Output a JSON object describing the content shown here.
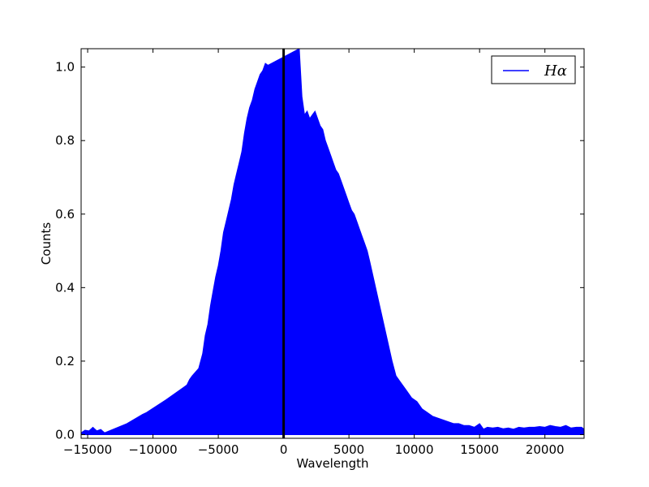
{
  "chart_data": {
    "type": "area",
    "title": "",
    "xlabel": "Wavelength",
    "ylabel": "Counts",
    "xlim": [
      -15500,
      23000
    ],
    "ylim": [
      -0.01,
      1.05
    ],
    "xticks": [
      -15000,
      -10000,
      -5000,
      0,
      5000,
      10000,
      15000,
      20000
    ],
    "xtick_labels": [
      "−15000",
      "−10000",
      "−5000",
      "0",
      "5000",
      "10000",
      "15000",
      "20000"
    ],
    "yticks": [
      0.0,
      0.2,
      0.4,
      0.6,
      0.8,
      1.0
    ],
    "ytick_labels": [
      "0.0",
      "0.2",
      "0.4",
      "0.6",
      "0.8",
      "1.0"
    ],
    "grid": false,
    "legend": {
      "placement": "top-right",
      "entries": [
        {
          "label": "Hα",
          "color": "#0000ff"
        }
      ]
    },
    "vertical_line": {
      "x": 0,
      "color": "#000000"
    },
    "series": [
      {
        "name": "Hα",
        "color": "#0000ff",
        "x": [
          -15500,
          -15200,
          -14900,
          -14600,
          -14300,
          -14000,
          -13700,
          -12000,
          -10800,
          -10500,
          -9000,
          -7600,
          -7400,
          -7200,
          -7000,
          -6500,
          -6200,
          -6000,
          -5800,
          -5600,
          -5400,
          -5200,
          -5000,
          -4800,
          -4600,
          -4400,
          -4200,
          -4000,
          -3800,
          -3600,
          -3400,
          -3200,
          -3000,
          -2800,
          -2600,
          -2400,
          -2200,
          -2000,
          -1800,
          -1600,
          -1400,
          -1200,
          1200,
          1400,
          1600,
          1800,
          2000,
          2200,
          2400,
          2600,
          2800,
          3000,
          3200,
          3400,
          3600,
          3800,
          4000,
          4200,
          4400,
          4600,
          4800,
          5000,
          5200,
          5400,
          5600,
          5800,
          6000,
          6200,
          6400,
          6600,
          8300,
          8600,
          9000,
          9400,
          9800,
          10200,
          10600,
          11000,
          11400,
          11800,
          12200,
          12600,
          13000,
          13400,
          13800,
          14200,
          14600,
          15000,
          15300,
          15600,
          16000,
          16400,
          16800,
          17200,
          17600,
          18000,
          18400,
          18800,
          19200,
          19600,
          20000,
          20400,
          20800,
          21200,
          21600,
          22000,
          22400,
          22800,
          23000
        ],
        "y": [
          0.005,
          0.012,
          0.01,
          0.02,
          0.01,
          0.014,
          0.005,
          0.03,
          0.055,
          0.06,
          0.095,
          0.13,
          0.135,
          0.15,
          0.16,
          0.18,
          0.22,
          0.27,
          0.3,
          0.35,
          0.39,
          0.43,
          0.46,
          0.5,
          0.55,
          0.58,
          0.61,
          0.64,
          0.68,
          0.71,
          0.74,
          0.77,
          0.82,
          0.86,
          0.89,
          0.91,
          0.94,
          0.96,
          0.98,
          0.99,
          1.01,
          1.005,
          1.05,
          0.92,
          0.87,
          0.88,
          0.86,
          0.87,
          0.88,
          0.86,
          0.84,
          0.83,
          0.8,
          0.78,
          0.76,
          0.74,
          0.72,
          0.71,
          0.69,
          0.67,
          0.65,
          0.63,
          0.61,
          0.6,
          0.58,
          0.56,
          0.54,
          0.52,
          0.5,
          0.47,
          0.2,
          0.16,
          0.14,
          0.12,
          0.1,
          0.09,
          0.07,
          0.06,
          0.05,
          0.045,
          0.04,
          0.035,
          0.03,
          0.03,
          0.025,
          0.025,
          0.02,
          0.03,
          0.015,
          0.02,
          0.018,
          0.02,
          0.016,
          0.018,
          0.015,
          0.02,
          0.018,
          0.02,
          0.02,
          0.022,
          0.02,
          0.025,
          0.022,
          0.02,
          0.025,
          0.018,
          0.02,
          0.02,
          0.015
        ]
      }
    ]
  }
}
